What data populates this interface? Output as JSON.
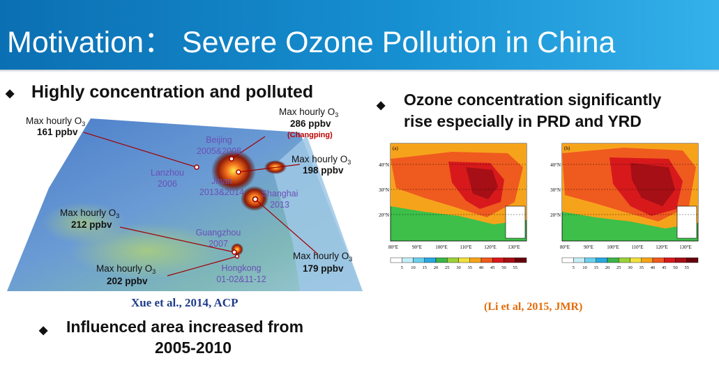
{
  "header": {
    "title": "Motivation： Severe Ozone Pollution in China"
  },
  "bullets": {
    "left_top": "Highly concentration and polluted",
    "right_top": [
      "Ozone concentration significantly",
      "rise especially in PRD and YRD"
    ],
    "left_bottom": [
      "Influenced area increased from",
      "2005-2010"
    ],
    "glyph": "◆"
  },
  "map": {
    "max_label": "Max hourly O",
    "max_sub": "3",
    "callouts": [
      {
        "value": "161 ppbv"
      },
      {
        "value": "286 ppbv",
        "note": "(Changping)"
      },
      {
        "value": "198 ppbv"
      },
      {
        "value": "212 ppbv"
      },
      {
        "value": "179 ppbv"
      },
      {
        "value": "202 ppbv"
      }
    ],
    "cities": [
      {
        "name": "Beijing",
        "year": "2005&2008"
      },
      {
        "name": "Lanzhou",
        "year": "2006"
      },
      {
        "name": "Jinan",
        "year": "2013&2014"
      },
      {
        "name": "Shanghai",
        "year": "2013"
      },
      {
        "name": "Guangzhou",
        "year": "2007"
      },
      {
        "name": "Hongkong",
        "year": "01-02&11-12"
      }
    ]
  },
  "citation_left": "Xue et al., 2014, ACP",
  "citation_right": "(Li et al, 2015, JMR)",
  "panels": [
    {
      "tag": "(a)",
      "lat_labels": [
        "40°N",
        "30°N",
        "20°N"
      ],
      "lon_labels": [
        "80°E",
        "90°E",
        "100°E",
        "110°E",
        "120°E",
        "130°E"
      ],
      "colorbar_ticks": [
        "5",
        "10",
        "15",
        "20",
        "25",
        "30",
        "35",
        "40",
        "45",
        "50",
        "55"
      ]
    },
    {
      "tag": "(b)",
      "lat_labels": [
        "40°N",
        "30°N",
        "20°N"
      ],
      "lon_labels": [
        "80°E",
        "90°E",
        "100°E",
        "110°E",
        "120°E",
        "130°E"
      ],
      "colorbar_ticks": [
        "5",
        "10",
        "15",
        "20",
        "25",
        "30",
        "35",
        "40",
        "45",
        "50",
        "55"
      ]
    }
  ],
  "colors": {
    "header_start": "#0b6fb3",
    "header_end": "#34b0ea",
    "callout_text": "#111111",
    "city_text": "#6a4fb5",
    "changping": "#c00000",
    "colorbar": [
      "#ffffff",
      "#c6eef7",
      "#6cd0ee",
      "#2aa8e0",
      "#3cb44a",
      "#9ad13a",
      "#f0e040",
      "#f6a31c",
      "#ef5a1f",
      "#d7191c",
      "#a50f15",
      "#67000d"
    ]
  }
}
